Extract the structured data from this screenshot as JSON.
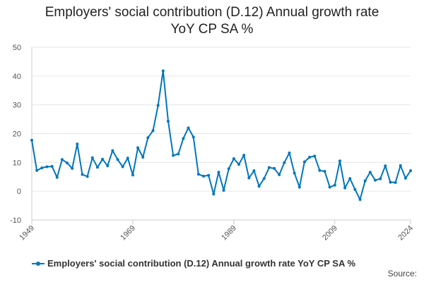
{
  "chart_data": {
    "type": "line",
    "title_line1": "Employers' social contribution (D.12) Annual growth rate",
    "title_line2": "YoY CP SA %",
    "ylim": [
      -10,
      50
    ],
    "yticks": [
      -10,
      0,
      10,
      20,
      30,
      40,
      50
    ],
    "xlim": [
      1949,
      2024
    ],
    "xticks": [
      "1949",
      "1969",
      "1989",
      "2009",
      "2024"
    ],
    "grid": true,
    "legend_position": "bottom-left",
    "series": [
      {
        "name": "Employers' social contribution (D.12) Annual growth rate YoY CP SA %",
        "color": "#0077bb",
        "x": [
          1949,
          1950,
          1951,
          1952,
          1953,
          1954,
          1955,
          1956,
          1957,
          1958,
          1959,
          1960,
          1961,
          1962,
          1963,
          1964,
          1965,
          1966,
          1967,
          1968,
          1969,
          1970,
          1971,
          1972,
          1973,
          1974,
          1975,
          1976,
          1977,
          1978,
          1979,
          1980,
          1981,
          1982,
          1983,
          1984,
          1985,
          1986,
          1987,
          1988,
          1989,
          1990,
          1991,
          1992,
          1993,
          1994,
          1995,
          1996,
          1997,
          1998,
          1999,
          2000,
          2001,
          2002,
          2003,
          2004,
          2005,
          2006,
          2007,
          2008,
          2009,
          2010,
          2011,
          2012,
          2013,
          2014,
          2015,
          2016,
          2017,
          2018,
          2019,
          2020,
          2021,
          2022,
          2023,
          2024
        ],
        "values": [
          17.7,
          7.2,
          8.1,
          8.5,
          8.6,
          4.8,
          11.0,
          9.8,
          7.9,
          16.4,
          5.8,
          5.1,
          11.6,
          8.3,
          11.1,
          8.8,
          14.1,
          11.0,
          8.5,
          11.5,
          5.6,
          15.1,
          11.8,
          18.6,
          21.0,
          29.8,
          41.8,
          24.3,
          12.4,
          12.9,
          18.3,
          22.0,
          18.8,
          5.9,
          5.2,
          5.5,
          -1.0,
          6.6,
          0.3,
          7.8,
          11.3,
          9.3,
          12.5,
          4.6,
          7.1,
          1.7,
          4.4,
          8.2,
          7.9,
          5.7,
          9.9,
          13.3,
          6.3,
          1.4,
          10.2,
          11.8,
          12.2,
          7.2,
          6.9,
          1.4,
          2.1,
          10.5,
          1.1,
          4.4,
          0.6,
          -2.9,
          3.6,
          6.6,
          3.8,
          4.3,
          8.8,
          3.1,
          3.0,
          8.9,
          4.5,
          7.1
        ]
      }
    ]
  },
  "footer": {
    "source_label": "Source:"
  }
}
